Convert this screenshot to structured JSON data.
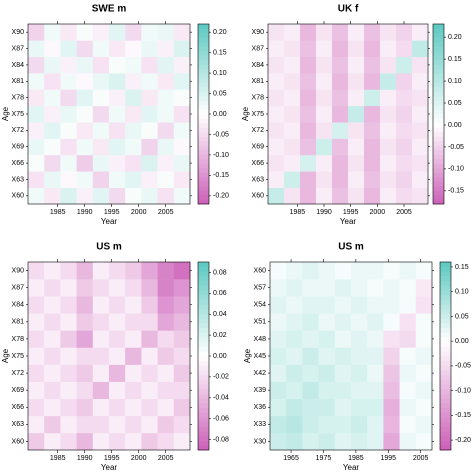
{
  "chart_data": [
    {
      "type": "heatmap",
      "title": "SWE m",
      "xlabel": "Year",
      "ylabel": "Age",
      "x": [
        1981,
        1984,
        1987,
        1990,
        1993,
        1996,
        1999,
        2002,
        2005,
        2008
      ],
      "x_step": 3,
      "y": [
        "X60",
        "X63",
        "X66",
        "X69",
        "X72",
        "X75",
        "X78",
        "X81",
        "X84",
        "X87",
        "X90"
      ],
      "z": [
        [
          0.02,
          -0.03,
          0.05,
          -0.02,
          0.04,
          -0.05,
          0.01,
          0.03,
          -0.04,
          0.02
        ],
        [
          -0.04,
          0.03,
          -0.01,
          0.02,
          -0.06,
          0.02,
          0.04,
          -0.02,
          0.01,
          -0.03
        ],
        [
          0.01,
          -0.05,
          0.02,
          -0.07,
          0.03,
          -0.02,
          -0.04,
          0.05,
          -0.02,
          0.03
        ],
        [
          0.03,
          0.01,
          -0.04,
          0.02,
          -0.03,
          0.04,
          0.02,
          -0.06,
          0.03,
          -0.01
        ],
        [
          -0.02,
          0.04,
          0.01,
          -0.03,
          0.02,
          -0.04,
          0.03,
          0.01,
          -0.05,
          0.02
        ],
        [
          0.04,
          -0.02,
          0.03,
          0.01,
          -0.05,
          0.02,
          -0.03,
          0.04,
          0.02,
          -0.04
        ],
        [
          -0.03,
          0.02,
          -0.05,
          0.04,
          0.01,
          -0.02,
          0.05,
          -0.03,
          0.02,
          0.01
        ],
        [
          0.02,
          -0.04,
          0.02,
          -0.01,
          0.03,
          0.05,
          -0.02,
          0.02,
          -0.03,
          0.04
        ],
        [
          -0.05,
          0.03,
          -0.02,
          0.03,
          -0.04,
          0.01,
          0.02,
          -0.04,
          0.04,
          -0.02
        ],
        [
          0.03,
          -0.01,
          0.04,
          -0.05,
          0.02,
          -0.03,
          -0.01,
          0.03,
          -0.02,
          0.05
        ],
        [
          -0.06,
          0.02,
          -0.03,
          0.01,
          -0.02,
          0.04,
          -0.05,
          0.02,
          0.03,
          -0.03
        ]
      ],
      "xlim": [
        1979.5,
        2009.5
      ],
      "xticks": [
        1985,
        1990,
        1995,
        2000,
        2005
      ],
      "zlim": [
        -0.22,
        0.22
      ],
      "zticks": [
        {
          "value": 0.2,
          "label": "0.20"
        },
        {
          "value": 0.15,
          "label": "0.15"
        },
        {
          "value": 0.1,
          "label": "0.10"
        },
        {
          "value": 0.05,
          "label": "0.05"
        },
        {
          "value": 0,
          "label": "0.00"
        },
        {
          "value": -0.05,
          "label": "-0.05"
        },
        {
          "value": -0.1,
          "label": "-0.10"
        },
        {
          "value": -0.15,
          "label": "-0.15"
        },
        {
          "value": -0.2,
          "label": "-0.20"
        }
      ],
      "low_color": "#cc5fb8",
      "high_color": "#5cc9c0"
    },
    {
      "type": "heatmap",
      "title": "UK f",
      "xlabel": "Year",
      "ylabel": "Age",
      "x": [
        1981,
        1984,
        1987,
        1990,
        1993,
        1996,
        1999,
        2002,
        2005,
        2008
      ],
      "x_step": 3,
      "y": [
        "X60",
        "X63",
        "X66",
        "X69",
        "X72",
        "X75",
        "X78",
        "X81",
        "X84",
        "X87",
        "X90"
      ],
      "z": [
        [
          0.08,
          -0.03,
          -0.08,
          -0.02,
          -0.07,
          -0.03,
          -0.08,
          -0.02,
          -0.04,
          -0.03
        ],
        [
          -0.02,
          0.07,
          -0.08,
          -0.03,
          -0.08,
          -0.02,
          -0.07,
          -0.03,
          -0.05,
          -0.02
        ],
        [
          -0.03,
          -0.02,
          0.06,
          -0.02,
          -0.08,
          -0.03,
          -0.08,
          -0.02,
          -0.04,
          -0.03
        ],
        [
          -0.02,
          -0.03,
          -0.07,
          0.07,
          -0.07,
          -0.02,
          -0.08,
          -0.03,
          -0.05,
          -0.02
        ],
        [
          -0.03,
          -0.02,
          -0.08,
          -0.03,
          0.06,
          -0.03,
          -0.07,
          -0.02,
          -0.04,
          -0.03
        ],
        [
          -0.02,
          -0.03,
          -0.07,
          -0.02,
          -0.08,
          0.08,
          -0.08,
          -0.03,
          -0.05,
          -0.02
        ],
        [
          -0.03,
          -0.02,
          -0.08,
          -0.03,
          -0.07,
          -0.02,
          0.07,
          -0.02,
          -0.04,
          -0.03
        ],
        [
          -0.02,
          -0.03,
          -0.07,
          -0.02,
          -0.08,
          -0.03,
          -0.08,
          0.08,
          -0.05,
          -0.02
        ],
        [
          -0.03,
          -0.02,
          -0.08,
          -0.03,
          -0.07,
          -0.02,
          -0.07,
          -0.03,
          0.07,
          -0.03
        ],
        [
          -0.02,
          -0.03,
          -0.07,
          -0.02,
          -0.08,
          -0.03,
          -0.08,
          -0.02,
          -0.04,
          0.09
        ],
        [
          -0.03,
          -0.02,
          -0.08,
          -0.03,
          -0.07,
          -0.02,
          -0.07,
          -0.03,
          -0.05,
          -0.02
        ]
      ],
      "xlim": [
        1979.5,
        2009.5
      ],
      "xticks": [
        1985,
        1990,
        1995,
        2000,
        2005
      ],
      "zlim": [
        -0.18,
        0.23
      ],
      "zticks": [
        {
          "value": 0.2,
          "label": "0.20"
        },
        {
          "value": 0.15,
          "label": "0.15"
        },
        {
          "value": 0.1,
          "label": "0.10"
        },
        {
          "value": 0.05,
          "label": "0.05"
        },
        {
          "value": 0,
          "label": "0.00"
        },
        {
          "value": -0.05,
          "label": "-0.05"
        },
        {
          "value": -0.1,
          "label": "-0.10"
        },
        {
          "value": -0.15,
          "label": "-0.15"
        }
      ],
      "low_color": "#cc5fb8",
      "high_color": "#5cc9c0"
    },
    {
      "type": "heatmap",
      "title": "US m",
      "xlabel": "Year",
      "ylabel": "Age",
      "x": [
        1981,
        1984,
        1987,
        1990,
        1993,
        1996,
        1999,
        2002,
        2005,
        2008
      ],
      "x_step": 3,
      "y": [
        "X60",
        "X63",
        "X66",
        "X69",
        "X72",
        "X75",
        "X78",
        "X81",
        "X84",
        "X87",
        "X90"
      ],
      "z": [
        [
          -0.03,
          -0.01,
          -0.02,
          -0.04,
          -0.01,
          -0.02,
          -0.01,
          -0.03,
          -0.02,
          -0.01
        ],
        [
          -0.01,
          -0.03,
          -0.01,
          -0.02,
          -0.02,
          -0.01,
          -0.02,
          -0.01,
          -0.03,
          -0.02
        ],
        [
          -0.02,
          -0.01,
          -0.02,
          -0.03,
          -0.01,
          -0.02,
          -0.01,
          -0.02,
          -0.01,
          -0.03
        ],
        [
          -0.01,
          -0.02,
          -0.01,
          -0.02,
          -0.04,
          -0.01,
          -0.02,
          -0.01,
          -0.02,
          -0.02
        ],
        [
          -0.02,
          -0.01,
          -0.02,
          -0.03,
          -0.01,
          -0.04,
          -0.01,
          -0.02,
          -0.01,
          -0.03
        ],
        [
          -0.01,
          -0.02,
          -0.01,
          -0.02,
          -0.02,
          -0.01,
          -0.04,
          -0.01,
          -0.03,
          -0.02
        ],
        [
          -0.02,
          -0.01,
          -0.03,
          -0.05,
          -0.01,
          -0.02,
          -0.01,
          -0.04,
          -0.02,
          -0.03
        ],
        [
          -0.01,
          -0.02,
          -0.01,
          -0.03,
          -0.02,
          -0.01,
          -0.02,
          -0.02,
          -0.05,
          -0.04
        ],
        [
          -0.02,
          -0.01,
          -0.02,
          -0.04,
          -0.01,
          -0.02,
          -0.01,
          -0.03,
          -0.06,
          -0.05
        ],
        [
          -0.01,
          -0.02,
          -0.01,
          -0.03,
          -0.02,
          -0.01,
          -0.02,
          -0.04,
          -0.07,
          -0.06
        ],
        [
          -0.02,
          -0.01,
          -0.02,
          -0.04,
          -0.01,
          -0.02,
          -0.03,
          -0.05,
          -0.07,
          -0.08
        ]
      ],
      "xlim": [
        1979.5,
        2009.5
      ],
      "xticks": [
        1985,
        1990,
        1995,
        2000,
        2005
      ],
      "zlim": [
        -0.09,
        0.09
      ],
      "zticks": [
        {
          "value": 0.08,
          "label": "0.08"
        },
        {
          "value": 0.06,
          "label": "0.06"
        },
        {
          "value": 0.04,
          "label": "0.04"
        },
        {
          "value": 0.02,
          "label": "0.02"
        },
        {
          "value": 0,
          "label": "0.00"
        },
        {
          "value": -0.02,
          "label": "-0.02"
        },
        {
          "value": -0.04,
          "label": "-0.04"
        },
        {
          "value": -0.06,
          "label": "-0.06"
        },
        {
          "value": -0.08,
          "label": "-0.08"
        }
      ],
      "low_color": "#cc5fb8",
      "high_color": "#5cc9c0"
    },
    {
      "type": "heatmap",
      "title": "US m",
      "xlabel": "Year",
      "ylabel": "Age",
      "x": [
        1961,
        1966,
        1971,
        1976,
        1981,
        1986,
        1991,
        1996,
        2001,
        2006
      ],
      "x_step": 5,
      "y": [
        "X30",
        "X33",
        "X36",
        "X39",
        "X42",
        "X45",
        "X48",
        "X51",
        "X54",
        "X57",
        "X60"
      ],
      "z": [
        [
          0.05,
          0.06,
          0.04,
          0.05,
          0.03,
          0.04,
          0.03,
          -0.12,
          0.02,
          0.01
        ],
        [
          0.06,
          0.07,
          0.05,
          0.04,
          0.04,
          0.05,
          0.03,
          -0.1,
          0.01,
          0.02
        ],
        [
          0.04,
          0.06,
          0.05,
          0.05,
          0.03,
          0.04,
          0.04,
          -0.11,
          0.02,
          0.01
        ],
        [
          0.05,
          0.04,
          0.06,
          0.04,
          0.04,
          0.03,
          0.03,
          -0.09,
          0.01,
          0.02
        ],
        [
          0.03,
          0.05,
          0.04,
          0.05,
          0.03,
          0.04,
          0.02,
          -0.08,
          0.02,
          0.01
        ],
        [
          0.04,
          0.03,
          0.05,
          0.03,
          0.04,
          0.03,
          0.03,
          -0.06,
          0.01,
          0.02
        ],
        [
          0.03,
          0.04,
          0.03,
          0.04,
          0.02,
          0.03,
          0.02,
          -0.04,
          -0.05,
          0.01
        ],
        [
          0.02,
          0.03,
          0.04,
          0.02,
          0.03,
          0.02,
          0.03,
          0.01,
          -0.04,
          0.01
        ],
        [
          0.03,
          0.02,
          0.03,
          0.03,
          0.02,
          0.03,
          0.02,
          0.02,
          0.01,
          -0.04
        ],
        [
          0.02,
          0.03,
          0.02,
          0.02,
          0.03,
          0.02,
          0.01,
          0.02,
          0.01,
          -0.03
        ],
        [
          0.01,
          0.02,
          0.03,
          0.02,
          0.01,
          0.02,
          0.02,
          0.01,
          0.02,
          0.01
        ]
      ],
      "xlim": [
        1958.5,
        2008.5
      ],
      "xticks": [
        1965,
        1975,
        1985,
        1995,
        2005
      ],
      "zlim": [
        -0.22,
        0.16
      ],
      "zticks": [
        {
          "value": 0.15,
          "label": "0.15"
        },
        {
          "value": 0.1,
          "label": "0.10"
        },
        {
          "value": 0.05,
          "label": "0.05"
        },
        {
          "value": 0,
          "label": "0.00"
        },
        {
          "value": -0.05,
          "label": "-0.05"
        },
        {
          "value": -0.1,
          "label": "-0.10"
        },
        {
          "value": -0.15,
          "label": "-0.15"
        },
        {
          "value": -0.2,
          "label": "-0.20"
        }
      ],
      "low_color": "#cc5fb8",
      "high_color": "#5cc9c0"
    }
  ]
}
